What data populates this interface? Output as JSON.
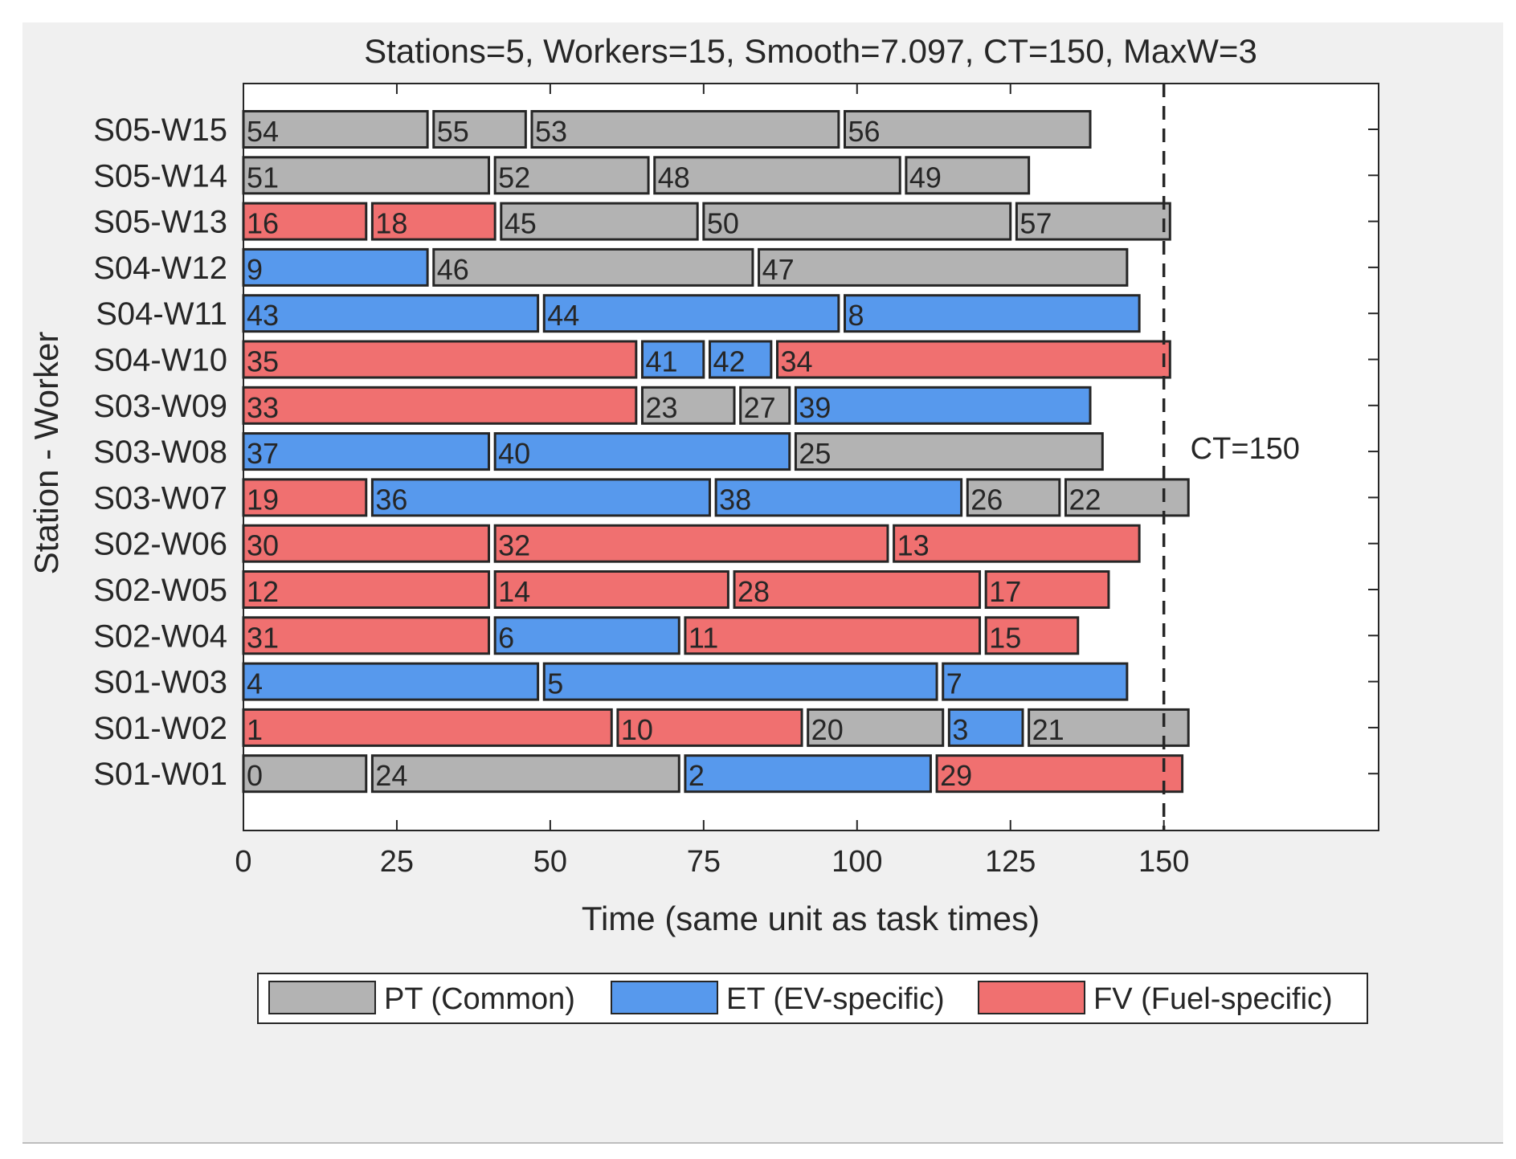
{
  "chart_data": {
    "type": "gantt",
    "title": "Stations=5, Workers=15, Smooth=7.097, CT=150, MaxW=3",
    "xlabel": "Time (same unit as task times)",
    "ylabel": "Station - Worker",
    "xlim": [
      0,
      185
    ],
    "xticks": [
      0,
      25,
      50,
      75,
      100,
      125,
      150
    ],
    "cycle_time": 150,
    "ct_label": "CT=150",
    "categories": {
      "PT": {
        "label": "PT (Common)",
        "color": "#b3b3b3"
      },
      "ET": {
        "label": "ET (EV-specific)",
        "color": "#5799ed"
      },
      "FV": {
        "label": "FV (Fuel-specific)",
        "color": "#f07070"
      }
    },
    "legend_order": [
      "PT",
      "ET",
      "FV"
    ],
    "rows": [
      {
        "label": "S05-W15",
        "tasks": [
          {
            "id": "54",
            "start": 0,
            "end": 30,
            "type": "PT"
          },
          {
            "id": "55",
            "start": 31,
            "end": 46,
            "type": "PT"
          },
          {
            "id": "53",
            "start": 47,
            "end": 97,
            "type": "PT"
          },
          {
            "id": "56",
            "start": 98,
            "end": 138,
            "type": "PT"
          }
        ]
      },
      {
        "label": "S05-W14",
        "tasks": [
          {
            "id": "51",
            "start": 0,
            "end": 40,
            "type": "PT"
          },
          {
            "id": "52",
            "start": 41,
            "end": 66,
            "type": "PT"
          },
          {
            "id": "48",
            "start": 67,
            "end": 107,
            "type": "PT"
          },
          {
            "id": "49",
            "start": 108,
            "end": 128,
            "type": "PT"
          }
        ]
      },
      {
        "label": "S05-W13",
        "tasks": [
          {
            "id": "16",
            "start": 0,
            "end": 20,
            "type": "FV"
          },
          {
            "id": "18",
            "start": 21,
            "end": 41,
            "type": "FV"
          },
          {
            "id": "45",
            "start": 42,
            "end": 74,
            "type": "PT"
          },
          {
            "id": "50",
            "start": 75,
            "end": 125,
            "type": "PT"
          },
          {
            "id": "57",
            "start": 126,
            "end": 151,
            "type": "PT"
          }
        ]
      },
      {
        "label": "S04-W12",
        "tasks": [
          {
            "id": "9",
            "start": 0,
            "end": 30,
            "type": "ET"
          },
          {
            "id": "46",
            "start": 31,
            "end": 83,
            "type": "PT"
          },
          {
            "id": "47",
            "start": 84,
            "end": 144,
            "type": "PT"
          }
        ]
      },
      {
        "label": "S04-W11",
        "tasks": [
          {
            "id": "43",
            "start": 0,
            "end": 48,
            "type": "ET"
          },
          {
            "id": "44",
            "start": 49,
            "end": 97,
            "type": "ET"
          },
          {
            "id": "8",
            "start": 98,
            "end": 146,
            "type": "ET"
          }
        ]
      },
      {
        "label": "S04-W10",
        "tasks": [
          {
            "id": "35",
            "start": 0,
            "end": 64,
            "type": "FV"
          },
          {
            "id": "41",
            "start": 65,
            "end": 75,
            "type": "ET"
          },
          {
            "id": "42",
            "start": 76,
            "end": 86,
            "type": "ET"
          },
          {
            "id": "34",
            "start": 87,
            "end": 151,
            "type": "FV"
          }
        ]
      },
      {
        "label": "S03-W09",
        "tasks": [
          {
            "id": "33",
            "start": 0,
            "end": 64,
            "type": "FV"
          },
          {
            "id": "23",
            "start": 65,
            "end": 80,
            "type": "PT"
          },
          {
            "id": "27",
            "start": 81,
            "end": 89,
            "type": "PT"
          },
          {
            "id": "39",
            "start": 90,
            "end": 138,
            "type": "ET"
          }
        ]
      },
      {
        "label": "S03-W08",
        "tasks": [
          {
            "id": "37",
            "start": 0,
            "end": 40,
            "type": "ET"
          },
          {
            "id": "40",
            "start": 41,
            "end": 89,
            "type": "ET"
          },
          {
            "id": "25",
            "start": 90,
            "end": 140,
            "type": "PT"
          }
        ]
      },
      {
        "label": "S03-W07",
        "tasks": [
          {
            "id": "19",
            "start": 0,
            "end": 20,
            "type": "FV"
          },
          {
            "id": "36",
            "start": 21,
            "end": 76,
            "type": "ET"
          },
          {
            "id": "38",
            "start": 77,
            "end": 117,
            "type": "ET"
          },
          {
            "id": "26",
            "start": 118,
            "end": 133,
            "type": "PT"
          },
          {
            "id": "22",
            "start": 134,
            "end": 154,
            "type": "PT"
          }
        ]
      },
      {
        "label": "S02-W06",
        "tasks": [
          {
            "id": "30",
            "start": 0,
            "end": 40,
            "type": "FV"
          },
          {
            "id": "32",
            "start": 41,
            "end": 105,
            "type": "FV"
          },
          {
            "id": "13",
            "start": 106,
            "end": 146,
            "type": "FV"
          }
        ]
      },
      {
        "label": "S02-W05",
        "tasks": [
          {
            "id": "12",
            "start": 0,
            "end": 40,
            "type": "FV"
          },
          {
            "id": "14",
            "start": 41,
            "end": 79,
            "type": "FV"
          },
          {
            "id": "28",
            "start": 80,
            "end": 120,
            "type": "FV"
          },
          {
            "id": "17",
            "start": 121,
            "end": 141,
            "type": "FV"
          }
        ]
      },
      {
        "label": "S02-W04",
        "tasks": [
          {
            "id": "31",
            "start": 0,
            "end": 40,
            "type": "FV"
          },
          {
            "id": "6",
            "start": 41,
            "end": 71,
            "type": "ET"
          },
          {
            "id": "11",
            "start": 72,
            "end": 120,
            "type": "FV"
          },
          {
            "id": "15",
            "start": 121,
            "end": 136,
            "type": "FV"
          }
        ]
      },
      {
        "label": "S01-W03",
        "tasks": [
          {
            "id": "4",
            "start": 0,
            "end": 48,
            "type": "ET"
          },
          {
            "id": "5",
            "start": 49,
            "end": 113,
            "type": "ET"
          },
          {
            "id": "7",
            "start": 114,
            "end": 144,
            "type": "ET"
          }
        ]
      },
      {
        "label": "S01-W02",
        "tasks": [
          {
            "id": "1",
            "start": 0,
            "end": 60,
            "type": "FV"
          },
          {
            "id": "10",
            "start": 61,
            "end": 91,
            "type": "FV"
          },
          {
            "id": "20",
            "start": 92,
            "end": 114,
            "type": "PT"
          },
          {
            "id": "3",
            "start": 115,
            "end": 127,
            "type": "ET"
          },
          {
            "id": "21",
            "start": 128,
            "end": 154,
            "type": "PT"
          }
        ]
      },
      {
        "label": "S01-W01",
        "tasks": [
          {
            "id": "0",
            "start": 0,
            "end": 20,
            "type": "PT"
          },
          {
            "id": "24",
            "start": 21,
            "end": 71,
            "type": "PT"
          },
          {
            "id": "2",
            "start": 72,
            "end": 112,
            "type": "ET"
          },
          {
            "id": "29",
            "start": 113,
            "end": 153,
            "type": "FV"
          }
        ]
      }
    ]
  }
}
